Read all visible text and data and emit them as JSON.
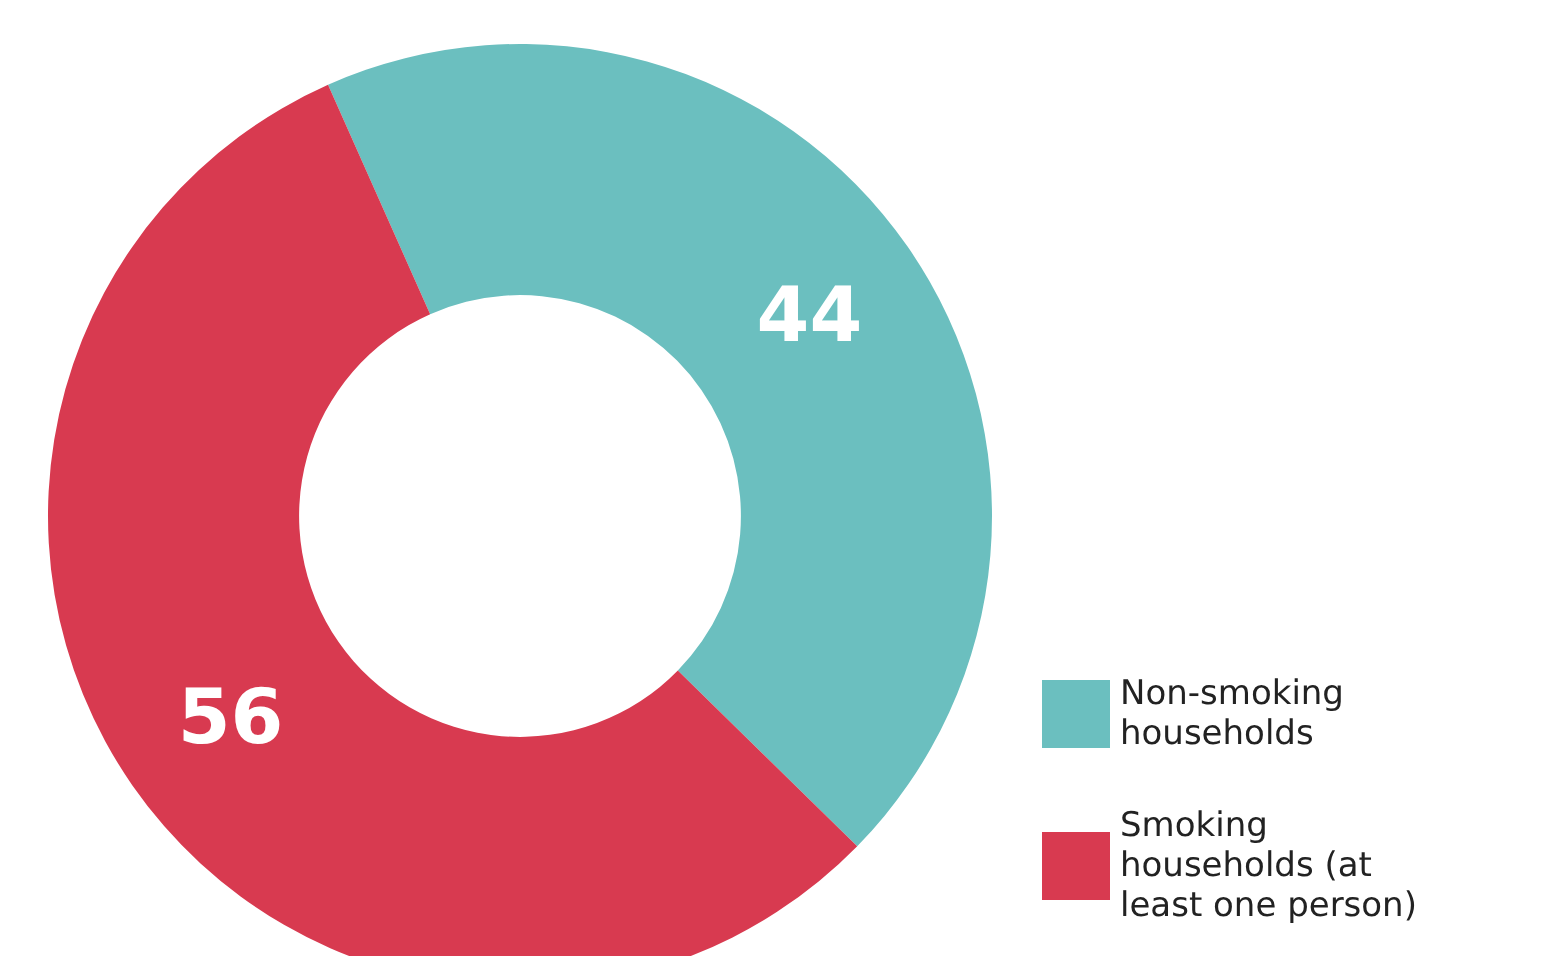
{
  "chart_data": {
    "type": "donut",
    "categories": [
      "Non-smoking households",
      "Smoking households (at least one person)"
    ],
    "values": [
      44,
      56
    ],
    "colors": [
      "#6bbfbf",
      "#d83a50"
    ],
    "data_labels": true,
    "legend": "bottom right"
  }
}
